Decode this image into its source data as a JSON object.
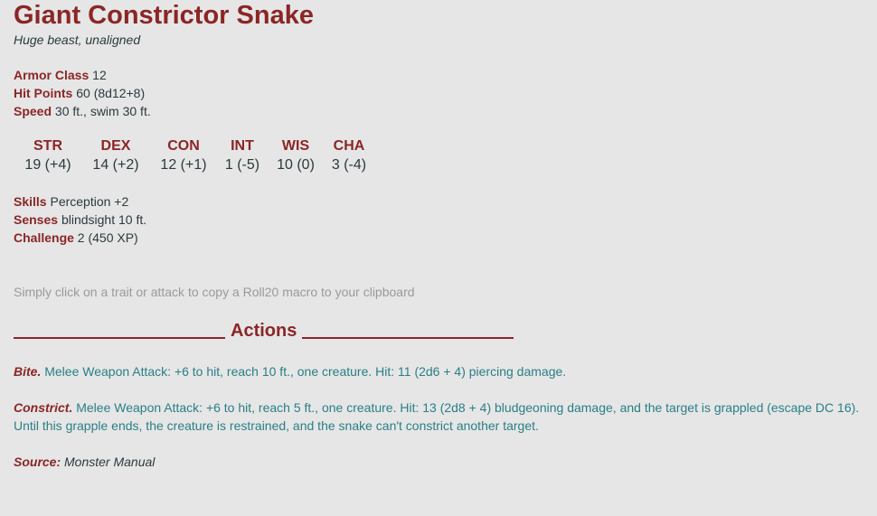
{
  "monster": {
    "name": "Giant Constrictor Snake",
    "type_line": "Huge beast, unaligned"
  },
  "properties": {
    "armor_class": {
      "label": "Armor Class",
      "value": "12"
    },
    "hit_points": {
      "label": "Hit Points",
      "value": "60 (8d12+8)"
    },
    "speed": {
      "label": "Speed",
      "value": "30 ft., swim 30 ft."
    }
  },
  "abilities": [
    {
      "name": "STR",
      "value": "19 (+4)"
    },
    {
      "name": "DEX",
      "value": "14 (+2)"
    },
    {
      "name": "CON",
      "value": "12 (+1)"
    },
    {
      "name": "INT",
      "value": "1 (-5)"
    },
    {
      "name": "WIS",
      "value": "10 (0)"
    },
    {
      "name": "CHA",
      "value": "3 (-4)"
    }
  ],
  "details": {
    "skills": {
      "label": "Skills",
      "value": "Perception +2"
    },
    "senses": {
      "label": "Senses",
      "value": "blindsight 10 ft."
    },
    "challenge": {
      "label": "Challenge",
      "value": "2 (450 XP)"
    }
  },
  "hint": "Simply click on a trait or attack to copy a Roll20 macro to your clipboard",
  "actions_heading": "Actions",
  "actions": [
    {
      "name": "Bite.",
      "text": " Melee Weapon Attack: +6 to hit, reach 10 ft., one creature. Hit: 11 (2d6 + 4) piercing damage."
    },
    {
      "name": "Constrict.",
      "text": " Melee Weapon Attack: +6 to hit, reach 5 ft., one creature. Hit: 13 (2d8 + 4) bludgeoning damage, and the target is grappled (escape DC 16). Until this grapple ends, the creature is restrained, and the snake can't constrict another target."
    }
  ],
  "source": {
    "label": "Source:",
    "value": "Monster Manual"
  },
  "colors": {
    "heading": "#8b2626",
    "action_text": "#2a7f86",
    "hint": "#9a9a9a",
    "background": "#e6e6e6"
  }
}
